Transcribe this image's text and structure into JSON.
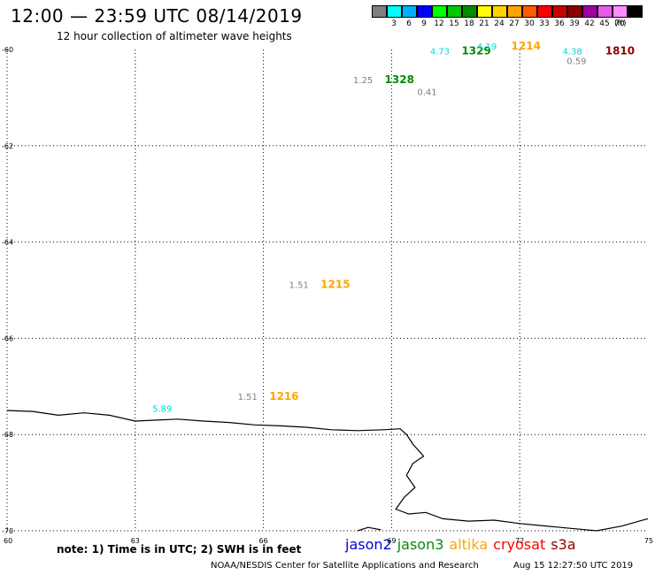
{
  "header": {
    "title": "12:00 — 23:59 UTC 08/14/2019",
    "subtitle": "12 hour collection of altimeter wave heights"
  },
  "legend": {
    "unit": "(ft)",
    "bins": [
      {
        "color": "#7f7f7f",
        "label": ""
      },
      {
        "color": "#00ffff",
        "label": "3"
      },
      {
        "color": "#00b0ff",
        "label": "6"
      },
      {
        "color": "#0000ff",
        "label": "9"
      },
      {
        "color": "#00ff00",
        "label": "12"
      },
      {
        "color": "#00c800",
        "label": "15"
      },
      {
        "color": "#008c00",
        "label": "18"
      },
      {
        "color": "#ffff00",
        "label": "21"
      },
      {
        "color": "#ffd200",
        "label": "24"
      },
      {
        "color": "#ffa500",
        "label": "27"
      },
      {
        "color": "#ff5a00",
        "label": "30"
      },
      {
        "color": "#ff0000",
        "label": "33"
      },
      {
        "color": "#c80000",
        "label": "36"
      },
      {
        "color": "#8b0000",
        "label": "39"
      },
      {
        "color": "#a000a0",
        "label": "42"
      },
      {
        "color": "#e65ae6",
        "label": "45"
      },
      {
        "color": "#ff8cff",
        "label": "70"
      },
      {
        "color": "#000000",
        "label": ""
      }
    ]
  },
  "map": {
    "lon_range": [
      60,
      75
    ],
    "lat_range": [
      -70,
      -60
    ],
    "grid_lons": [
      63,
      66,
      69,
      72
    ],
    "grid_lats": [
      -62,
      -64,
      -66,
      -68
    ],
    "lon_ticks": [
      {
        "value": 60,
        "label": "60"
      },
      {
        "value": 63,
        "label": "63"
      },
      {
        "value": 66,
        "label": "66"
      },
      {
        "value": 69,
        "label": "69"
      },
      {
        "value": 72,
        "label": "72"
      },
      {
        "value": 75,
        "label": "75"
      }
    ],
    "lat_ticks": [
      {
        "value": -60,
        "label": "-60"
      },
      {
        "value": -62,
        "label": "-62"
      },
      {
        "value": -64,
        "label": "-64"
      },
      {
        "value": -66,
        "label": "-66"
      },
      {
        "value": -68,
        "label": "-68"
      },
      {
        "value": -70,
        "label": "-70"
      }
    ],
    "coastline": [
      [
        60.0,
        -67.5
      ],
      [
        60.6,
        -67.52
      ],
      [
        61.2,
        -67.6
      ],
      [
        61.8,
        -67.55
      ],
      [
        62.4,
        -67.6
      ],
      [
        63.0,
        -67.72
      ],
      [
        63.5,
        -67.7
      ],
      [
        64.0,
        -67.68
      ],
      [
        64.6,
        -67.72
      ],
      [
        65.2,
        -67.75
      ],
      [
        65.8,
        -67.8
      ],
      [
        66.4,
        -67.82
      ],
      [
        67.0,
        -67.85
      ],
      [
        67.6,
        -67.9
      ],
      [
        68.2,
        -67.92
      ],
      [
        68.8,
        -67.9
      ],
      [
        69.2,
        -67.88
      ],
      [
        69.35,
        -68.0
      ],
      [
        69.5,
        -68.2
      ],
      [
        69.75,
        -68.45
      ],
      [
        69.5,
        -68.6
      ],
      [
        69.35,
        -68.85
      ],
      [
        69.55,
        -69.1
      ],
      [
        69.3,
        -69.3
      ],
      [
        69.1,
        -69.55
      ],
      [
        69.4,
        -69.65
      ],
      [
        69.8,
        -69.62
      ],
      [
        70.2,
        -69.75
      ],
      [
        70.8,
        -69.8
      ],
      [
        71.4,
        -69.78
      ],
      [
        72.0,
        -69.85
      ],
      [
        72.6,
        -69.9
      ],
      [
        73.2,
        -69.95
      ],
      [
        73.8,
        -70.0
      ],
      [
        74.4,
        -69.9
      ],
      [
        74.8,
        -69.8
      ],
      [
        75.0,
        -69.75
      ]
    ],
    "coastline_fragment": [
      [
        68.2,
        -70.0
      ],
      [
        68.45,
        -69.93
      ],
      [
        68.75,
        -69.98
      ]
    ]
  },
  "observations": [
    {
      "lon": 69.9,
      "lat": -60.1,
      "swh": "4.73",
      "time": "1329",
      "swh_color": "#00dcdc",
      "time_color": "#008c00"
    },
    {
      "lon": 71.0,
      "lat": -60.0,
      "swh": "4.19",
      "time": "",
      "swh_color": "#00dcdc",
      "time_color": "#00dcdc"
    },
    {
      "lon": 71.8,
      "lat": -60.0,
      "swh": "",
      "time": "1214",
      "swh_color": "#ffa500",
      "time_color": "#ffa500"
    },
    {
      "lon": 73.0,
      "lat": -60.1,
      "swh": "4.38",
      "time": "",
      "swh_color": "#00dcdc",
      "time_color": "#00dcdc"
    },
    {
      "lon": 73.1,
      "lat": -60.3,
      "swh": "0.59",
      "time": "",
      "swh_color": "#7f7f7f",
      "time_color": "#7f7f7f"
    },
    {
      "lon": 74.0,
      "lat": -60.1,
      "swh": "",
      "time": "1810",
      "swh_color": "#8b0000",
      "time_color": "#8b0000"
    },
    {
      "lon": 68.1,
      "lat": -60.7,
      "swh": "1.25",
      "time": "1328",
      "swh_color": "#7f7f7f",
      "time_color": "#008c00"
    },
    {
      "lon": 69.6,
      "lat": -60.95,
      "swh": "0.41",
      "time": "",
      "swh_color": "#7f7f7f",
      "time_color": "#7f7f7f"
    },
    {
      "lon": 66.6,
      "lat": -64.95,
      "swh": "1.51",
      "time": "1215",
      "swh_color": "#7f7f7f",
      "time_color": "#ffa500"
    },
    {
      "lon": 65.4,
      "lat": -67.28,
      "swh": "1.51",
      "time": "1216",
      "swh_color": "#7f7f7f",
      "time_color": "#ffa500"
    },
    {
      "lon": 63.4,
      "lat": -67.53,
      "swh": "5.89",
      "time": "",
      "swh_color": "#00dcdc",
      "time_color": "#00dcdc"
    }
  ],
  "footer": {
    "note": "note:  1) Time is in UTC;  2) SWH is in feet",
    "satellites": [
      {
        "name": "jason2",
        "color": "#0000dc"
      },
      {
        "name": "jason3",
        "color": "#008c00"
      },
      {
        "name": "altika",
        "color": "#ffa500"
      },
      {
        "name": "cryosat",
        "color": "#ff0000"
      },
      {
        "name": "s3a",
        "color": "#8b0000"
      }
    ],
    "credit": "NOAA/NESDIS Center for Satellite Applications and Research",
    "timestamp": "Aug 15 12:27:50 UTC 2019"
  }
}
